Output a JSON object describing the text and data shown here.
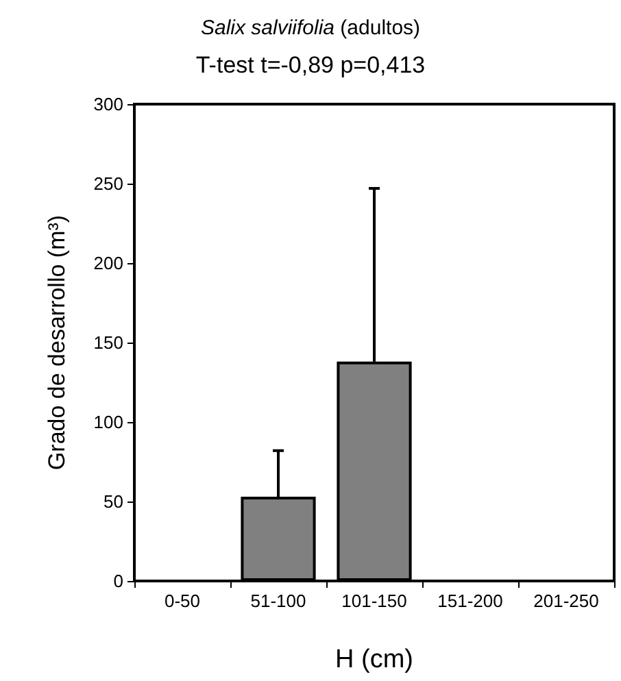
{
  "chart_data": {
    "type": "bar",
    "title": "Salix salviifolia (adultos)",
    "subtitle": "T-test t=-0,89 p=0,413",
    "xlabel": "H (cm)",
    "ylabel": "Grado de desarrollo (m³)",
    "categories": [
      "0-50",
      "51-100",
      "101-150",
      "151-200",
      "201-250"
    ],
    "values": [
      null,
      53,
      138,
      null,
      null
    ],
    "color": "#808080",
    "errors": [
      null,
      [
        53,
        82
      ],
      [
        138,
        247
      ],
      null,
      null
    ],
    "ylim": [
      0,
      300
    ],
    "yticks": [
      0,
      50,
      100,
      150,
      200,
      250,
      300
    ],
    "grid": false
  }
}
